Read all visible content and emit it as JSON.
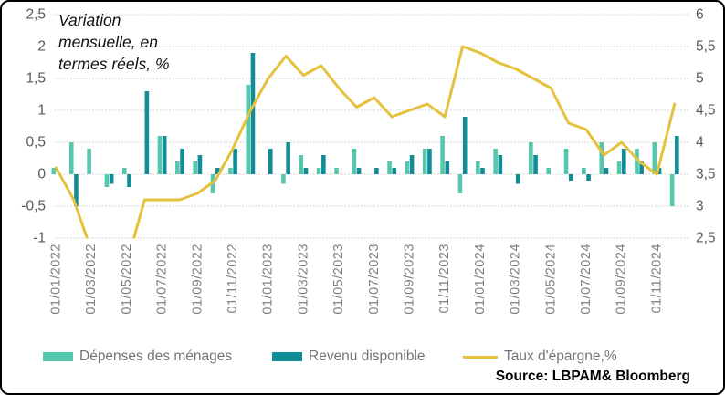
{
  "chart_data": {
    "type": "combo_bar_line",
    "title": "Variation\nmensuelle, en\ntermes réels, %",
    "source": "Source: LBPAM& Bloomberg",
    "n_points": 36,
    "grid": true,
    "legend_position": "bottom",
    "left_axis": {
      "min": -1,
      "max": 2.5,
      "step": 0.5,
      "tick_labels": [
        "2,5",
        "2",
        "1,5",
        "1",
        "0,5",
        "0",
        "-0,5",
        "-1"
      ]
    },
    "right_axis": {
      "min": 2.5,
      "max": 6,
      "step": 0.5,
      "tick_labels": [
        "6",
        "5,5",
        "5",
        "4,5",
        "4",
        "3,5",
        "3",
        "2,5"
      ]
    },
    "x_tick_labels": [
      "01/01/2022",
      "01/03/2022",
      "01/05/2022",
      "01/07/2022",
      "01/09/2022",
      "01/11/2022",
      "01/01/2023",
      "01/03/2023",
      "01/05/2023",
      "01/07/2023",
      "01/09/2023",
      "01/11/2023",
      "01/01/2024",
      "01/03/2024",
      "01/05/2024",
      "01/07/2024",
      "01/09/2024",
      "01/11/2024"
    ],
    "series": [
      {
        "name": "Dépenses des ménages",
        "type": "bar",
        "axis": "left",
        "color": "#55c7ac",
        "values": [
          0.1,
          0.5,
          0.4,
          -0.2,
          0.1,
          0,
          0.6,
          0.2,
          0.2,
          -0.3,
          0.1,
          1.4,
          0,
          -0.15,
          0.3,
          0.1,
          0.1,
          0.4,
          0,
          0.2,
          0.2,
          0.4,
          0.6,
          -0.3,
          0.2,
          0.4,
          0,
          0.5,
          0.1,
          0.4,
          0.1,
          0.5,
          0.2,
          0.4,
          0.5,
          -0.5
        ]
      },
      {
        "name": "Revenu disponible",
        "type": "bar",
        "axis": "left",
        "color": "#108d96",
        "values": [
          0,
          -0.5,
          0,
          -0.15,
          -0.2,
          1.3,
          0.6,
          0.4,
          0.3,
          0.1,
          0.4,
          1.9,
          0.4,
          0.5,
          0.1,
          0.3,
          0,
          0.1,
          0.1,
          0.1,
          0.3,
          0.4,
          0.2,
          0.9,
          0.1,
          0.3,
          -0.15,
          0.3,
          0,
          -0.1,
          -0.1,
          0.1,
          0.4,
          0.2,
          0.1,
          0.6
        ]
      },
      {
        "name": "Taux d'épargne,%",
        "type": "line",
        "axis": "right",
        "color": "#e5c13d",
        "values": [
          3.6,
          3.1,
          2.3,
          2.0,
          2.1,
          3.1,
          3.1,
          3.1,
          3.2,
          3.4,
          3.9,
          4.5,
          5.0,
          5.35,
          5.05,
          5.2,
          4.85,
          4.55,
          4.7,
          4.4,
          4.5,
          4.6,
          4.4,
          5.5,
          5.4,
          5.25,
          5.15,
          5.0,
          4.85,
          4.3,
          4.2,
          3.8,
          4.0,
          3.7,
          3.5,
          4.6
        ]
      }
    ]
  }
}
